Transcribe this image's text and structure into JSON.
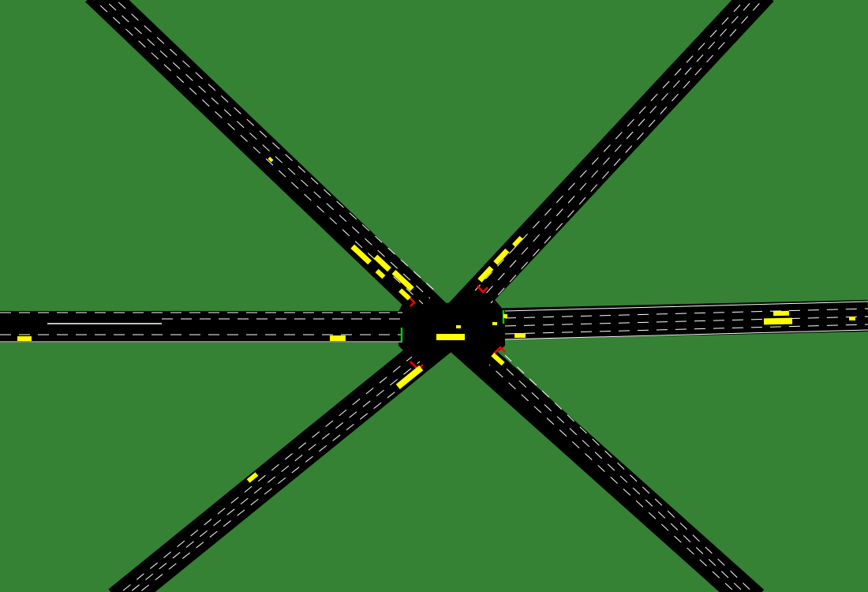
{
  "scene": {
    "description_type": "traffic-simulation-top-down",
    "colors": {
      "grass": "#358235",
      "road": "#000000",
      "lane_marking": "#ffffff",
      "vehicle": "#ffff00",
      "signal_red": "#ff0000",
      "signal_green": "#00cc00"
    },
    "roads": [
      {
        "id": "west-arm",
        "lanes": 4
      },
      {
        "id": "east-arm",
        "lanes": 4
      },
      {
        "id": "northwest-arm",
        "lanes": 4
      },
      {
        "id": "northeast-arm",
        "lanes": 4
      },
      {
        "id": "southwest-arm",
        "lanes": 4
      },
      {
        "id": "southeast-arm",
        "lanes": 4
      }
    ],
    "signals": [
      {
        "id": "nw-signal",
        "state": "red"
      },
      {
        "id": "ne-signal",
        "state": "red"
      },
      {
        "id": "w-signal",
        "state": "green"
      },
      {
        "id": "e-signal",
        "state": "green"
      },
      {
        "id": "sw-signal",
        "state": "red"
      },
      {
        "id": "se-signal",
        "state": "red"
      }
    ],
    "vehicle_count": 22
  }
}
